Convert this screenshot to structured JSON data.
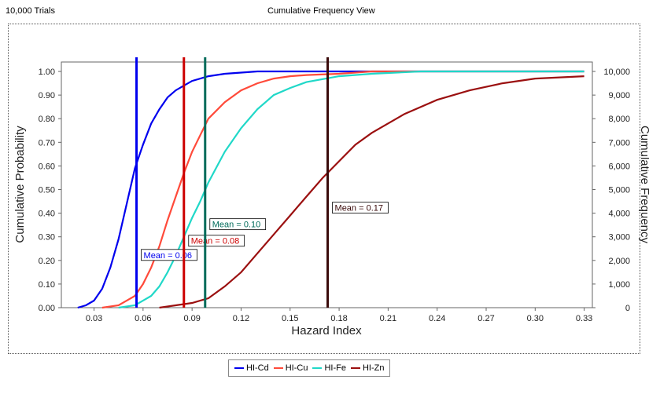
{
  "header": {
    "trials": "10,000 Trials",
    "view": "Cumulative Frequency View"
  },
  "chart_data": {
    "type": "line",
    "xlabel": "Hazard Index",
    "ylabel": "Cumulative Probability",
    "ylabel_right": "Cumulative Frequency",
    "xlim": [
      0.01,
      0.335
    ],
    "ylim": [
      0,
      1.04
    ],
    "x_ticks": [
      "0.03",
      "0.06",
      "0.09",
      "0.12",
      "0.15",
      "0.18",
      "0.21",
      "0.24",
      "0.27",
      "0.30",
      "0.33"
    ],
    "x_tick_values": [
      0.03,
      0.06,
      0.09,
      0.12,
      0.15,
      0.18,
      0.21,
      0.24,
      0.27,
      0.3,
      0.33
    ],
    "y_ticks": [
      "0.00",
      "0.10",
      "0.20",
      "0.30",
      "0.40",
      "0.50",
      "0.60",
      "0.70",
      "0.80",
      "0.90",
      "1.00"
    ],
    "y_right_ticks": [
      "0",
      "1,000",
      "2,000",
      "3,000",
      "4,000",
      "5,000",
      "6,000",
      "7,000",
      "8,000",
      "9,000",
      "10,000"
    ],
    "grid": false,
    "legend_position": "bottom",
    "series": [
      {
        "name": "HI-Cd",
        "color": "#0000ee",
        "mean": 0.056,
        "mean_label": "Mean = 0.06",
        "x": [
          0.02,
          0.025,
          0.03,
          0.035,
          0.04,
          0.045,
          0.05,
          0.055,
          0.06,
          0.065,
          0.07,
          0.075,
          0.08,
          0.085,
          0.09,
          0.1,
          0.11,
          0.12,
          0.13,
          0.15,
          0.2,
          0.33
        ],
        "y": [
          0.0,
          0.01,
          0.03,
          0.08,
          0.17,
          0.29,
          0.44,
          0.59,
          0.69,
          0.78,
          0.84,
          0.89,
          0.92,
          0.94,
          0.96,
          0.98,
          0.99,
          0.995,
          1.0,
          1.0,
          1.0,
          1.0
        ]
      },
      {
        "name": "HI-Cu",
        "color": "#ff4a3a",
        "mean": 0.085,
        "mean_label": "Mean = 0.08",
        "x": [
          0.035,
          0.045,
          0.055,
          0.06,
          0.065,
          0.07,
          0.075,
          0.08,
          0.085,
          0.09,
          0.095,
          0.1,
          0.11,
          0.12,
          0.13,
          0.14,
          0.15,
          0.16,
          0.18,
          0.2,
          0.33
        ],
        "y": [
          0.0,
          0.01,
          0.05,
          0.1,
          0.17,
          0.26,
          0.37,
          0.47,
          0.57,
          0.66,
          0.73,
          0.8,
          0.87,
          0.92,
          0.95,
          0.97,
          0.98,
          0.985,
          0.99,
          1.0,
          1.0
        ]
      },
      {
        "name": "HI-Fe",
        "color": "#20d8c8",
        "mean": 0.098,
        "mean_label": "Mean = 0.10",
        "x": [
          0.045,
          0.055,
          0.065,
          0.07,
          0.075,
          0.08,
          0.085,
          0.09,
          0.095,
          0.1,
          0.11,
          0.12,
          0.13,
          0.14,
          0.15,
          0.16,
          0.18,
          0.2,
          0.23,
          0.33
        ],
        "y": [
          0.0,
          0.01,
          0.05,
          0.09,
          0.15,
          0.22,
          0.3,
          0.38,
          0.45,
          0.53,
          0.66,
          0.76,
          0.84,
          0.9,
          0.93,
          0.955,
          0.98,
          0.99,
          1.0,
          1.0
        ]
      },
      {
        "name": "HI-Zn",
        "color": "#9b1010",
        "mean": 0.173,
        "mean_label": "Mean = 0.17",
        "x": [
          0.07,
          0.08,
          0.09,
          0.1,
          0.11,
          0.12,
          0.13,
          0.14,
          0.15,
          0.16,
          0.17,
          0.18,
          0.19,
          0.2,
          0.22,
          0.24,
          0.26,
          0.28,
          0.3,
          0.33
        ],
        "y": [
          0.0,
          0.01,
          0.02,
          0.04,
          0.09,
          0.15,
          0.23,
          0.31,
          0.39,
          0.47,
          0.55,
          0.62,
          0.69,
          0.74,
          0.82,
          0.88,
          0.92,
          0.95,
          0.97,
          0.98
        ]
      }
    ]
  }
}
